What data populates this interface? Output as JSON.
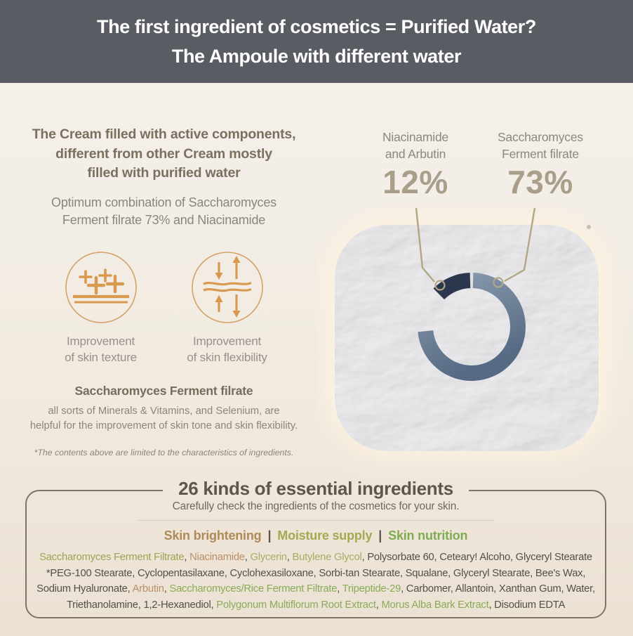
{
  "header": {
    "line1": "The first ingredient of cosmetics = Purified Water?",
    "line2": "The Ampoule with different water",
    "background": "#595d63"
  },
  "left": {
    "heading": {
      "l1": "The Cream filled with active components,",
      "l2": "different from other Cream mostly",
      "l3": "filled with purified water"
    },
    "subheading": {
      "l1": "Optimum combination of Saccharomyces",
      "l2": "Ferment filrate 73% and Niacinamide"
    },
    "features": [
      {
        "icon": "sparkles-skin-icon",
        "label_l1": "Improvement",
        "label_l2": "of skin texture"
      },
      {
        "icon": "compress-stretch-arrows-icon",
        "label_l1": "Improvement",
        "label_l2": "of skin flexibility"
      }
    ],
    "highlight_title": "Saccharomyces Ferment filrate",
    "highlight": {
      "l1": "all sorts of Minerals & Vitamins, and Selenium, are",
      "l2": "helpful for the improvement of skin tone and skin flexibility."
    },
    "footnote": "*The contents above are limited to the characteristics of ingredients."
  },
  "chart": {
    "callouts": [
      {
        "label_l1": "Niacinamide",
        "label_l2": "and Arbutin",
        "value": "12%"
      },
      {
        "label_l1": "Saccharomyces",
        "label_l2": "Ferment filrate",
        "value": "73%"
      }
    ]
  },
  "chart_data": {
    "type": "pie",
    "donut": true,
    "unit": "%",
    "slices": [
      {
        "label": "Saccharomyces Ferment filrate",
        "value": 73,
        "color": "#6e8096"
      },
      {
        "label": "Niacinamide and Arbutin",
        "value": 12,
        "color": "#2b374d"
      },
      {
        "label": "remainder (unlabeled)",
        "value": 15,
        "color": "none"
      }
    ],
    "legend_position": "callouts-above",
    "notes": "donut drawn over crumpled-cream texture swatch; leader lines with ring markers point from percentage labels to slices"
  },
  "box": {
    "title": "26 kinds of essential ingredients",
    "subtitle": "Carefully check the ingredients of the cosmetics for your skin.",
    "category_separator": "|",
    "categories": [
      {
        "label": "Skin brightening",
        "color": "#ad8a58"
      },
      {
        "label": "Moisture supply",
        "color": "#a4a952"
      },
      {
        "label": "Skin nutrition",
        "color": "#7fac52"
      }
    ],
    "ingredient_lines": [
      [
        {
          "t": "Saccharomyces Ferment Filtrate",
          "c": "olive"
        },
        {
          "t": ", ",
          "c": "default"
        },
        {
          "t": "Niacinamide",
          "c": "tan"
        },
        {
          "t": ", ",
          "c": "default"
        },
        {
          "t": "Glycerin",
          "c": "olive2"
        },
        {
          "t": ", ",
          "c": "default"
        },
        {
          "t": "Butylene Glycol",
          "c": "olive2"
        },
        {
          "t": ", Polysorbate 60, Ceteary! Alcoho, Glyceryl Stearate",
          "c": "default"
        }
      ],
      [
        {
          "t": "*PEG-100 Stearate, Cyclopentasilaxane, Cyclohexasiloxane, Sorbi-tan Stearate, Squalane, Glyceryl Stearate, Bee's Wax,",
          "c": "default"
        }
      ],
      [
        {
          "t": "Sodium Hyaluronate, ",
          "c": "default"
        },
        {
          "t": "Arbutin",
          "c": "tan"
        },
        {
          "t": ", ",
          "c": "default"
        },
        {
          "t": "Saccharomyces/Rice Ferment Filtrate",
          "c": "green"
        },
        {
          "t": ", ",
          "c": "default"
        },
        {
          "t": "Tripeptide-29",
          "c": "green"
        },
        {
          "t": ", Carbomer, Allantoin, Xanthan Gum, Water,",
          "c": "default"
        }
      ],
      [
        {
          "t": "Triethanolamine, 1,2-Hexanediol, ",
          "c": "default"
        },
        {
          "t": "Polygonum Multiflorum Root Extract",
          "c": "green"
        },
        {
          "t": ", ",
          "c": "default"
        },
        {
          "t": "Morus Alba Bark Extract",
          "c": "green"
        },
        {
          "t": ", Disodium EDTA",
          "c": "default"
        }
      ]
    ]
  },
  "colors": {
    "accent_orange": "#d8994e",
    "leader_line": "#b2a685",
    "arc_dark": "#2b374d",
    "arc_light_start": "#8b9cb0",
    "arc_light_end": "#566a84",
    "percent_text": "#a89e8a",
    "ingredient": {
      "default": "#564f48",
      "olive": "#9fa355",
      "olive2": "#a8ac66",
      "tan": "#ba8e66",
      "green": "#89ab58"
    }
  }
}
